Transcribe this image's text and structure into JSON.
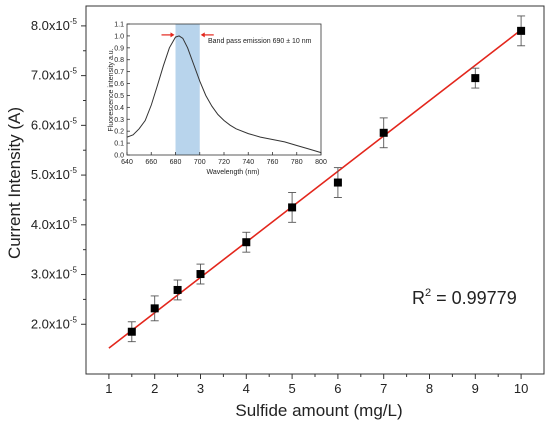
{
  "chart_data": [
    {
      "type": "scatter",
      "xlabel": "Sulfide amount (mg/L)",
      "ylabel": "Current Intensity (A)",
      "xlim": [
        0.5,
        10.5
      ],
      "ylim": [
        1e-05,
        8.4e-05
      ],
      "x_ticks": [
        1,
        2,
        3,
        4,
        5,
        6,
        7,
        8,
        9,
        10
      ],
      "x_tick_labels": [
        "1",
        "2",
        "3",
        "4",
        "5",
        "6",
        "7",
        "8",
        "9",
        "10"
      ],
      "y_ticks": [
        2e-05,
        3e-05,
        4e-05,
        5e-05,
        6e-05,
        7e-05,
        8e-05
      ],
      "y_tick_mantissas": [
        "2.0x10",
        "3.0x10",
        "4.0x10",
        "5.0x10",
        "6.0x10",
        "7.0x10",
        "8.0x10"
      ],
      "y_tick_exponent": "-5",
      "series": [
        {
          "x": [
            1.5,
            2,
            2.5,
            3,
            4,
            5,
            6,
            7,
            9,
            10
          ],
          "y": [
            1.85e-05,
            2.32e-05,
            2.69e-05,
            3.01e-05,
            3.65e-05,
            4.35e-05,
            4.85e-05,
            5.85e-05,
            6.95e-05,
            7.9e-05
          ],
          "error": [
            2e-06,
            2.5e-06,
            2e-06,
            2e-06,
            2e-06,
            3e-06,
            3e-06,
            3e-06,
            2e-06,
            3e-06
          ]
        }
      ],
      "fit_line": {
        "x": [
          1,
          10
        ],
        "y": [
          1.52e-05,
          7.92e-05
        ],
        "color": "#e3261c"
      },
      "annotation": {
        "r2_label": "R",
        "r2_exponent": "2",
        "r2_value": " = 0.99779"
      },
      "marker_color": "#000000",
      "grid": false
    },
    {
      "type": "line",
      "xlabel": "Wavelength (nm)",
      "ylabel": "Fluorescence intensity a.u.",
      "xlim": [
        640,
        800
      ],
      "ylim": [
        0,
        1.1
      ],
      "x_ticks": [
        640,
        660,
        680,
        700,
        720,
        740,
        760,
        780,
        800
      ],
      "y_ticks": [
        0.0,
        0.1,
        0.2,
        0.3,
        0.4,
        0.5,
        0.6,
        0.7,
        0.8,
        0.9,
        1.0,
        1.1
      ],
      "series": [
        {
          "x": [
            640,
            645,
            650,
            655,
            660,
            665,
            670,
            675,
            680,
            683,
            686,
            690,
            695,
            700,
            705,
            710,
            715,
            720,
            725,
            730,
            740,
            750,
            760,
            770,
            780,
            790,
            800
          ],
          "y": [
            0.15,
            0.17,
            0.22,
            0.29,
            0.42,
            0.58,
            0.75,
            0.9,
            0.99,
            1.0,
            0.98,
            0.9,
            0.76,
            0.62,
            0.5,
            0.41,
            0.34,
            0.29,
            0.25,
            0.22,
            0.18,
            0.15,
            0.13,
            0.11,
            0.08,
            0.05,
            0.02
          ]
        }
      ],
      "band": {
        "from": 680,
        "to": 700,
        "color": "#b8d4ec"
      },
      "band_label": "Band pass emission 690 ± 10 nm",
      "arrow_color": "#e3261c"
    }
  ]
}
